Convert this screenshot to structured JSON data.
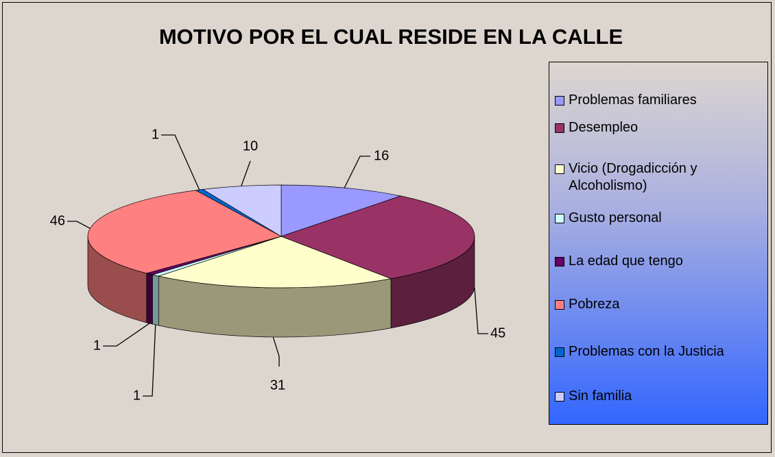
{
  "chart_data": {
    "type": "pie3d",
    "title": "MOTIVO POR EL CUAL RESIDE EN LA CALLE",
    "categories": [
      "Problemas familiares",
      "Desempleo",
      "Vicio (Drogadicción y Alcoholismo)",
      "Gusto personal",
      "La edad que tengo",
      "Pobreza",
      "Problemas con la Justicia",
      "Sin familia"
    ],
    "values": [
      16,
      45,
      31,
      1,
      1,
      46,
      1,
      10
    ],
    "colors": [
      "#9999ff",
      "#993366",
      "#ffffcc",
      "#ccffff",
      "#660066",
      "#ff8080",
      "#0066cc",
      "#ccccff"
    ],
    "legend": "right"
  }
}
